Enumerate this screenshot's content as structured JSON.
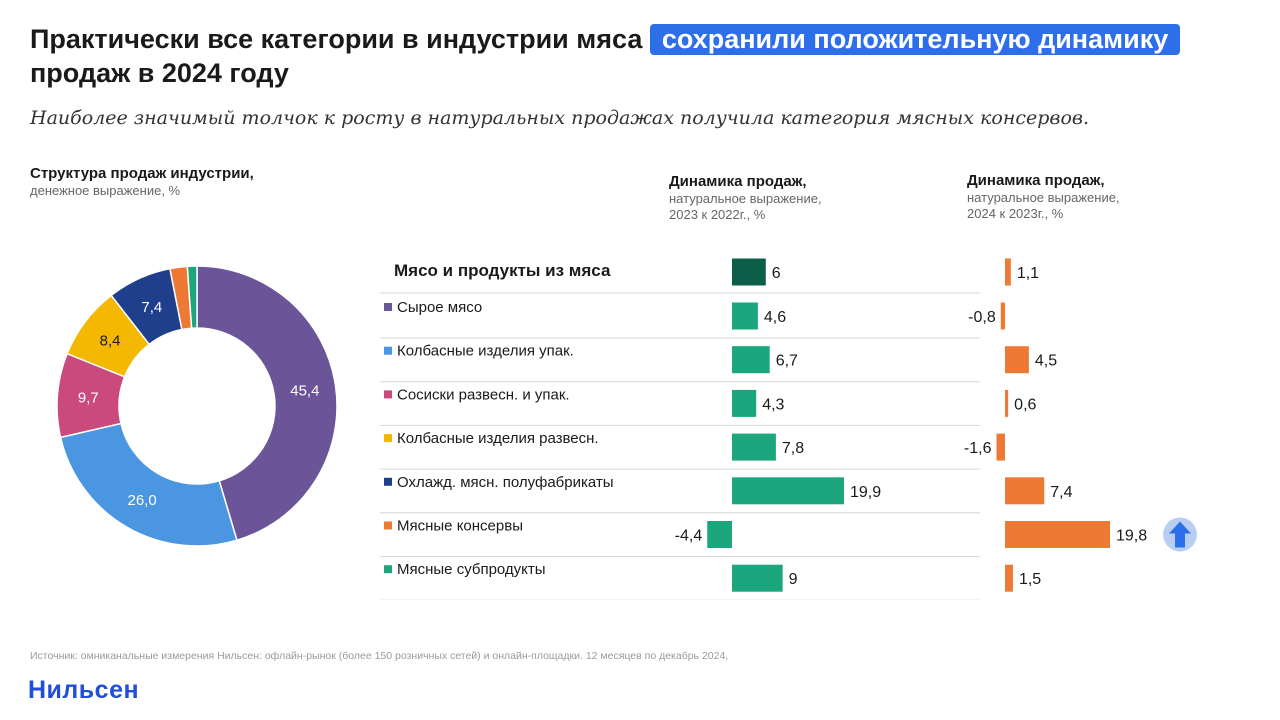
{
  "header": {
    "title_part1": "Практически все категории в индустрии мяса",
    "title_highlight": "сохранили положительную динамику",
    "title_part2": "продаж в 2024 году",
    "subtitle": "Наиболее значимый толчок к росту в натуральных продажах получила категория мясных консервов."
  },
  "donut_block": {
    "heading": "Структура продаж индустрии,",
    "subheading": "денежное выражение, %"
  },
  "dyn1_block": {
    "heading": "Динамика продаж,",
    "subheading_line1": "натуральное выражение,",
    "subheading_line2": "2023 к 2022г., %"
  },
  "dyn2_block": {
    "heading": "Динамика продаж,",
    "subheading_line1": "натуральное выражение,",
    "subheading_line2": "2024 к 2023г., %"
  },
  "footer": {
    "source": "Источник: омниканальные измерения Нильсен: офлайн-рынок (более 150 розничных сетей) и онлайн-площадки. 12 месяцев по декабрь 2024,",
    "brand": "Нильсен"
  },
  "colors": {
    "title_highlight_bg": "#2c6fe8",
    "bar_2023": "#1ba67e",
    "bar_2023_total": "#0d5e48",
    "bar_2024": "#ee7935",
    "arrow_circle": "#b9cef3",
    "arrow": "#2c6fe8",
    "brand": "#1f4ed8"
  },
  "chart_data": [
    {
      "type": "pie",
      "variant": "donut",
      "labels": [
        "Сырое мясо",
        "Колбасные изделия упак.",
        "Сосиски развесн. и упак.",
        "Колбасные изделия развесн.",
        "Охлажд. мясн. полуфабрикаты",
        "Мясные консервы",
        "Мясные субпродукты"
      ],
      "values": [
        45.4,
        26.0,
        9.7,
        8.4,
        7.4,
        2.0,
        1.1
      ],
      "value_labels": [
        "45,4",
        "26,0",
        "9,7",
        "8,4",
        "7,4",
        "",
        ""
      ],
      "colors": [
        "#6b5598",
        "#4a96e0",
        "#cb4a7e",
        "#f5b800",
        "#1f3e8c",
        "#ee7935",
        "#1ba67e"
      ]
    },
    {
      "type": "bar",
      "orientation": "horizontal",
      "total_label": "Мясо и продукты из мяса",
      "categories": [
        "Сырое мясо",
        "Колбасные изделия упак.",
        "Сосиски развесн. и упак.",
        "Колбасные изделия развесн.",
        "Охлажд. мясн. полуфабрикаты",
        "Мясные консервы",
        "Мясные субпродукты"
      ],
      "legend_colors": [
        "#6b5598",
        "#4a96e0",
        "#cb4a7e",
        "#f5b800",
        "#1f3e8c",
        "#ee7935",
        "#1ba67e"
      ],
      "series": [
        {
          "period": "2023 к 2022г.",
          "total": 6,
          "total_label": "6",
          "values": [
            4.6,
            6.7,
            4.3,
            7.8,
            19.9,
            -4.4,
            9
          ],
          "value_labels": [
            "4,6",
            "6,7",
            "4,3",
            "7,8",
            "19,9",
            "-4,4",
            "9"
          ]
        },
        {
          "period": "2024 к 2023г.",
          "total": 1.1,
          "total_label": "1,1",
          "values": [
            -0.8,
            4.5,
            0.6,
            -1.6,
            7.4,
            19.8,
            1.5
          ],
          "value_labels": [
            "-0,8",
            "4,5",
            "0,6",
            "-1,6",
            "7,4",
            "19,8",
            "1,5"
          ],
          "highlight_index": 5,
          "highlight_icon": "arrow-up-icon"
        }
      ]
    }
  ]
}
